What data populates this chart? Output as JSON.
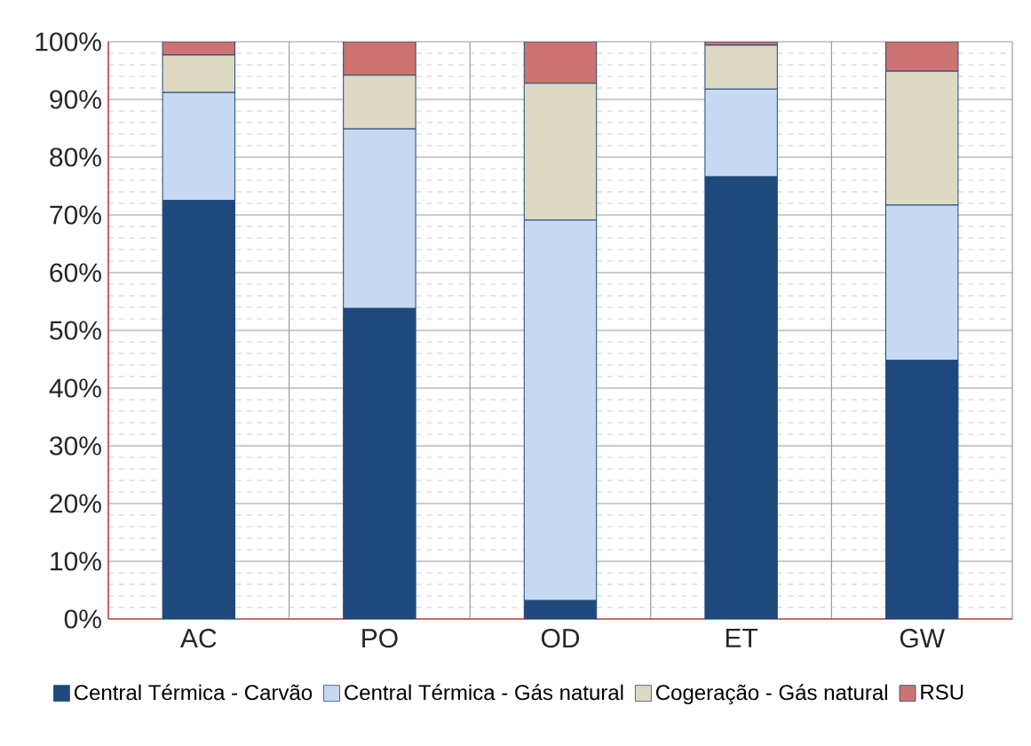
{
  "chart_data": {
    "type": "bar",
    "stacked": true,
    "categories": [
      "AC",
      "PO",
      "OD",
      "ET",
      "GW"
    ],
    "series": [
      {
        "name": "Central Térmica - Carvão",
        "color": "#1f497d",
        "values": [
          72.5,
          53.8,
          3.2,
          76.6,
          44.8
        ]
      },
      {
        "name": "Central Térmica - Gás natural",
        "color": "#c6d9f1",
        "values": [
          18.7,
          31.1,
          65.9,
          15.2,
          26.9
        ]
      },
      {
        "name": "Cogeração - Gás natural",
        "color": "#ddd9c3",
        "values": [
          6.5,
          9.3,
          23.7,
          7.6,
          23.2
        ]
      },
      {
        "name": "RSU",
        "color": "#cd7371",
        "values": [
          2.3,
          5.8,
          7.2,
          0.6,
          5.1
        ]
      }
    ],
    "ylim": [
      0,
      100
    ],
    "yticks": [
      {
        "value": 0,
        "label": "0%"
      },
      {
        "value": 10,
        "label": "10%"
      },
      {
        "value": 20,
        "label": "20%"
      },
      {
        "value": 30,
        "label": "30%"
      },
      {
        "value": 40,
        "label": "40%"
      },
      {
        "value": 50,
        "label": "50%"
      },
      {
        "value": 60,
        "label": "60%"
      },
      {
        "value": 70,
        "label": "70%"
      },
      {
        "value": 80,
        "label": "80%"
      },
      {
        "value": 90,
        "label": "90%"
      },
      {
        "value": 100,
        "label": "100%"
      }
    ],
    "grid": true,
    "legend": "bottom"
  }
}
